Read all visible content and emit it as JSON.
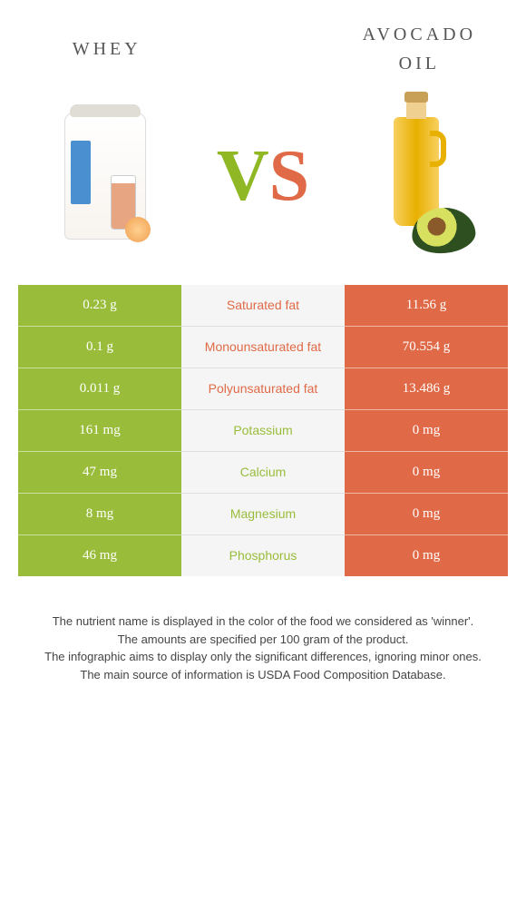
{
  "header": {
    "left": "whey",
    "right_line1": "avocado",
    "right_line2": "oil"
  },
  "vs": {
    "v": "V",
    "s": "S"
  },
  "colors": {
    "left_bg": "#99bd3a",
    "right_bg": "#e06a47",
    "mid_bg": "#f5f5f5",
    "left_text": "#99bd3a",
    "right_text": "#e06a47"
  },
  "rows": [
    {
      "left": "0.23 g",
      "label": "Saturated fat",
      "right": "11.56 g",
      "winner": "right"
    },
    {
      "left": "0.1 g",
      "label": "Monounsaturated fat",
      "right": "70.554 g",
      "winner": "right"
    },
    {
      "left": "0.011 g",
      "label": "Polyunsaturated fat",
      "right": "13.486 g",
      "winner": "right"
    },
    {
      "left": "161 mg",
      "label": "Potassium",
      "right": "0 mg",
      "winner": "left"
    },
    {
      "left": "47 mg",
      "label": "Calcium",
      "right": "0 mg",
      "winner": "left"
    },
    {
      "left": "8 mg",
      "label": "Magnesium",
      "right": "0 mg",
      "winner": "left"
    },
    {
      "left": "46 mg",
      "label": "Phosphorus",
      "right": "0 mg",
      "winner": "left"
    }
  ],
  "footer": {
    "l1": "The nutrient name is displayed in the color of the food we considered as 'winner'.",
    "l2": "The amounts are specified per 100 gram of the product.",
    "l3": "The infographic aims to display only the significant differences, ignoring minor ones.",
    "l4": "The main source of information is USDA Food Composition Database."
  }
}
